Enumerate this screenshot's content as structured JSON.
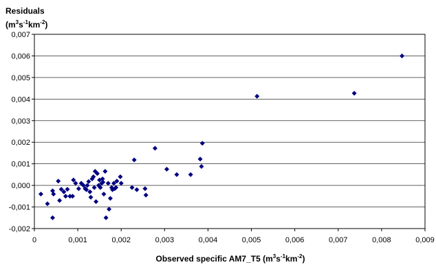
{
  "chart_data": {
    "type": "scatter",
    "ylabel": {
      "text": "Residuals",
      "unit_prefix": "(m",
      "unit_sup1": "3",
      "unit_mid1": "s",
      "unit_sup2": "-1",
      "unit_mid2": "km",
      "unit_sup3": "-2",
      "unit_suffix": ")"
    },
    "xlabel": {
      "text": "Observed specific AM7_T5 (m",
      "unit_sup1": "3",
      "unit_mid1": "s",
      "unit_sup2": "-1",
      "unit_mid2": "km",
      "unit_sup3": "-2",
      "unit_suffix": ")"
    },
    "xlim": [
      0,
      0.009
    ],
    "ylim": [
      -0.002,
      0.007
    ],
    "xticks": [
      0,
      0.001,
      0.002,
      0.003,
      0.004,
      0.005,
      0.006,
      0.007,
      0.008,
      0.009
    ],
    "xtick_labels": [
      "0",
      "0,001",
      "0,002",
      "0,003",
      "0,004",
      "0,005",
      "0,006",
      "0,007",
      "0,008",
      "0,009"
    ],
    "yticks": [
      -0.002,
      -0.001,
      0,
      0.001,
      0.002,
      0.003,
      0.004,
      0.005,
      0.006,
      0.007
    ],
    "ytick_labels": [
      "-0,002",
      "-0,001",
      "0,000",
      "0,001",
      "0,002",
      "0,003",
      "0,004",
      "0,005",
      "0,006",
      "0,007"
    ],
    "grid": "horizontal",
    "marker": "diamond",
    "marker_color": "#000080",
    "points": [
      [
        0.00015,
        -0.0004
      ],
      [
        0.0003,
        -0.00085
      ],
      [
        0.00042,
        -0.0015
      ],
      [
        0.00042,
        -0.00025
      ],
      [
        0.00044,
        -0.0004
      ],
      [
        0.00055,
        0.0002
      ],
      [
        0.00058,
        -0.0007
      ],
      [
        0.00062,
        -0.00018
      ],
      [
        0.00068,
        -0.0003
      ],
      [
        0.00072,
        -0.0005
      ],
      [
        0.00076,
        -0.00018
      ],
      [
        0.00082,
        -0.0005
      ],
      [
        0.00088,
        -0.0005
      ],
      [
        0.0009,
        0.00025
      ],
      [
        0.00095,
        0.0001
      ],
      [
        0.00102,
        -0.00015
      ],
      [
        0.00108,
        0.0001
      ],
      [
        0.00113,
        0.0
      ],
      [
        0.00117,
        -0.00015
      ],
      [
        0.0012,
        -0.0002
      ],
      [
        0.00122,
        0.0
      ],
      [
        0.00125,
        0.00018
      ],
      [
        0.00128,
        -0.0003
      ],
      [
        0.0013,
        -0.00055
      ],
      [
        0.00133,
        0.0003
      ],
      [
        0.00136,
        0.0004
      ],
      [
        0.00138,
        -0.0001
      ],
      [
        0.0014,
        0.00065
      ],
      [
        0.00142,
        -0.00075
      ],
      [
        0.00145,
        0.00055
      ],
      [
        0.00148,
        0.0
      ],
      [
        0.0015,
        0.00025
      ],
      [
        0.00152,
        -0.0001
      ],
      [
        0.00155,
        0.0001
      ],
      [
        0.00157,
        0.0003
      ],
      [
        0.00158,
        0.00015
      ],
      [
        0.0016,
        -0.0004
      ],
      [
        0.00163,
        0.00065
      ],
      [
        0.00165,
        -0.0015
      ],
      [
        0.0017,
        0.0001
      ],
      [
        0.00172,
        -0.0011
      ],
      [
        0.00175,
        -0.0006
      ],
      [
        0.00178,
        -0.0001
      ],
      [
        0.0018,
        -0.0002
      ],
      [
        0.00183,
        0.0001
      ],
      [
        0.00185,
        -0.00015
      ],
      [
        0.00188,
        -0.0001
      ],
      [
        0.0019,
        0.0002
      ],
      [
        0.00198,
        0.0004
      ],
      [
        0.002,
        0.0001
      ],
      [
        0.00225,
        -0.0001
      ],
      [
        0.0023,
        0.00118
      ],
      [
        0.00236,
        -0.0002
      ],
      [
        0.00255,
        -0.00015
      ],
      [
        0.00257,
        -0.00045
      ],
      [
        0.00278,
        0.00172
      ],
      [
        0.00305,
        0.00075
      ],
      [
        0.00328,
        0.0005
      ],
      [
        0.0036,
        0.0005
      ],
      [
        0.00382,
        0.00122
      ],
      [
        0.00385,
        0.00088
      ],
      [
        0.00387,
        0.00195
      ],
      [
        0.00513,
        0.00413
      ],
      [
        0.00737,
        0.00427
      ],
      [
        0.00847,
        0.006
      ]
    ]
  }
}
